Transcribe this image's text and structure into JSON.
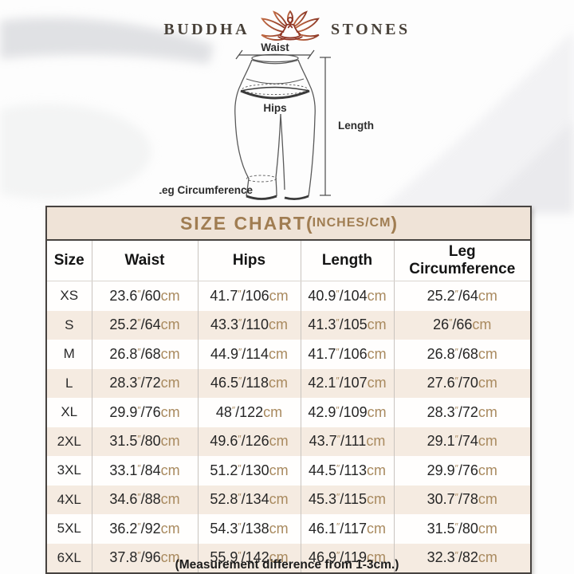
{
  "brand": {
    "name_left": "BUDDHA",
    "name_right": "STONES"
  },
  "diagram": {
    "waist_label": "Waist",
    "hips_label": "Hips",
    "length_label": "Length",
    "leg_label": "Leg Circumference"
  },
  "table": {
    "title_main": "SIZE CHART",
    "title_paren_open": "(",
    "title_units": "INCHES/CM",
    "title_paren_close": ")",
    "columns": [
      "Size",
      "Waist",
      "Hips",
      "Length",
      "Leg Circumference"
    ],
    "inch_mark": "″",
    "slash": "/",
    "cm_suffix": "cm",
    "rows": [
      {
        "size": "XS",
        "waist": [
          "23.6",
          "60"
        ],
        "hips": [
          "41.7",
          "106"
        ],
        "length": [
          "40.9",
          "104"
        ],
        "leg": [
          "25.2",
          "64"
        ]
      },
      {
        "size": "S",
        "waist": [
          "25.2",
          "64"
        ],
        "hips": [
          "43.3",
          "110"
        ],
        "length": [
          "41.3",
          "105"
        ],
        "leg": [
          "26",
          "66"
        ]
      },
      {
        "size": "M",
        "waist": [
          "26.8",
          "68"
        ],
        "hips": [
          "44.9",
          "114"
        ],
        "length": [
          "41.7",
          "106"
        ],
        "leg": [
          "26.8",
          "68"
        ]
      },
      {
        "size": "L",
        "waist": [
          "28.3",
          "72"
        ],
        "hips": [
          "46.5",
          "118"
        ],
        "length": [
          "42.1",
          "107"
        ],
        "leg": [
          "27.6",
          "70"
        ]
      },
      {
        "size": "XL",
        "waist": [
          "29.9",
          "76"
        ],
        "hips": [
          "48",
          "122"
        ],
        "length": [
          "42.9",
          "109"
        ],
        "leg": [
          "28.3",
          "72"
        ]
      },
      {
        "size": "2XL",
        "waist": [
          "31.5",
          "80"
        ],
        "hips": [
          "49.6",
          "126"
        ],
        "length": [
          "43.7",
          "111"
        ],
        "leg": [
          "29.1",
          "74"
        ]
      },
      {
        "size": "3XL",
        "waist": [
          "33.1",
          "84"
        ],
        "hips": [
          "51.2",
          "130"
        ],
        "length": [
          "44.5",
          "113"
        ],
        "leg": [
          "29.9",
          "76"
        ]
      },
      {
        "size": "4XL",
        "waist": [
          "34.6",
          "88"
        ],
        "hips": [
          "52.8",
          "134"
        ],
        "length": [
          "45.3",
          "115"
        ],
        "leg": [
          "30.7",
          "78"
        ]
      },
      {
        "size": "5XL",
        "waist": [
          "36.2",
          "92"
        ],
        "hips": [
          "54.3",
          "138"
        ],
        "length": [
          "46.1",
          "117"
        ],
        "leg": [
          "31.5",
          "80"
        ]
      },
      {
        "size": "6XL",
        "waist": [
          "37.8",
          "96"
        ],
        "hips": [
          "55.9",
          "142"
        ],
        "length": [
          "46.9",
          "119"
        ],
        "leg": [
          "32.3",
          "82"
        ]
      }
    ]
  },
  "footer": {
    "note": "(Measurement difference from 1-3cm.)"
  },
  "colors": {
    "accent_gold": "#a07d52",
    "unit_tan": "#a98a5f",
    "cream_row": "#f5ebe1",
    "title_band_bg": "#efe3d7",
    "table_border": "#474340",
    "lotus_red_light": "#c06a43",
    "lotus_red_dark": "#8e3a28",
    "brand_text": "#474038"
  }
}
